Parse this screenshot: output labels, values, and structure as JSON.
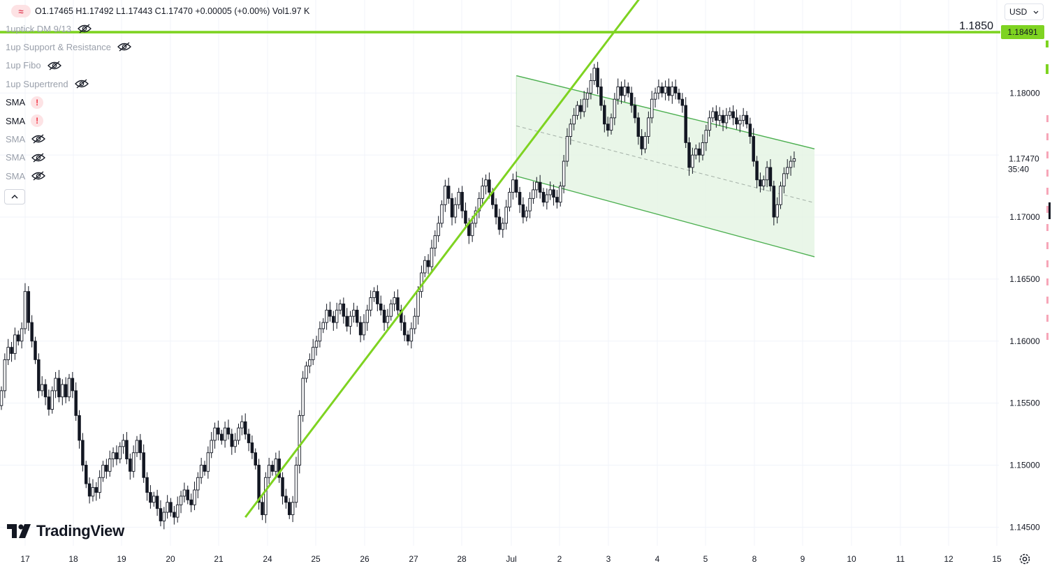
{
  "header": {
    "ohlc": "O1.17465  H1.17492  L1.17443  C1.17470  +0.00005 (+0.00%)  Vol1.97 K",
    "currency": "USD"
  },
  "indicators": [
    {
      "label": "1uptick DM 9/13",
      "status": "hidden"
    },
    {
      "label": "1up Support & Resistance",
      "status": "hidden"
    },
    {
      "label": "1up Fibo",
      "status": "hidden"
    },
    {
      "label": "1up Supertrend",
      "status": "hidden"
    },
    {
      "label": "SMA",
      "status": "error"
    },
    {
      "label": "SMA",
      "status": "error"
    },
    {
      "label": "SMA",
      "status": "hidden"
    },
    {
      "label": "SMA",
      "status": "hidden"
    },
    {
      "label": "SMA",
      "status": "hidden"
    }
  ],
  "icons": {
    "logo": "fx-logo-icon",
    "eye": "eye-off-icon",
    "error": "warning-icon",
    "collapse": "chevron-up-icon",
    "dropdown": "chevron-down-icon",
    "settings": "gear-icon",
    "brand": "tradingview-logo"
  },
  "brand": "TradingView",
  "colors": {
    "up": "#131722",
    "down": "#131722",
    "drawing": "#7ed321",
    "channel_line": "#4caf50",
    "channel_fill": "#e4f4e2",
    "price_label_bg": "#7ed321"
  },
  "chart_data": {
    "type": "candlestick",
    "symbol_timeframe": "EURUSD 1h (approx)",
    "price_axis": {
      "ticks": [
        "1.18000",
        "1.17500",
        "1.17000",
        "1.16500",
        "1.16000",
        "1.15500",
        "1.15000",
        "1.14500"
      ],
      "range": [
        1.1435,
        1.1875
      ]
    },
    "time_axis": {
      "ticks": [
        "17",
        "18",
        "19",
        "20",
        "21",
        "24",
        "25",
        "26",
        "27",
        "28",
        "Jul",
        "2",
        "3",
        "4",
        "5",
        "8",
        "9",
        "10",
        "11",
        "12",
        "15"
      ]
    },
    "last_price": "1.17470",
    "countdown": "35:40",
    "horizontal_line": {
      "text_label": "1.1850",
      "axis_label": "1.18491",
      "price": 1.18491
    },
    "candles": [
      [
        1.1548,
        1.156
      ],
      [
        1.156,
        1.1585
      ],
      [
        1.1585,
        1.1595
      ],
      [
        1.1595,
        1.159
      ],
      [
        1.159,
        1.1605
      ],
      [
        1.1605,
        1.16
      ],
      [
        1.16,
        1.161
      ],
      [
        1.161,
        1.164
      ],
      [
        1.164,
        1.1615
      ],
      [
        1.1615,
        1.16
      ],
      [
        1.16,
        1.1585
      ],
      [
        1.1585,
        1.156
      ],
      [
        1.156,
        1.1565
      ],
      [
        1.1565,
        1.1555
      ],
      [
        1.1555,
        1.1545
      ],
      [
        1.1545,
        1.156
      ],
      [
        1.156,
        1.157
      ],
      [
        1.157,
        1.1555
      ],
      [
        1.1555,
        1.1565
      ],
      [
        1.1565,
        1.1555
      ],
      [
        1.1555,
        1.157
      ],
      [
        1.157,
        1.156
      ],
      [
        1.156,
        1.154
      ],
      [
        1.154,
        1.152
      ],
      [
        1.152,
        1.15
      ],
      [
        1.15,
        1.1485
      ],
      [
        1.1485,
        1.1475
      ],
      [
        1.1475,
        1.1482
      ],
      [
        1.1482,
        1.1478
      ],
      [
        1.1478,
        1.149
      ],
      [
        1.149,
        1.15
      ],
      [
        1.15,
        1.1495
      ],
      [
        1.1495,
        1.1505
      ],
      [
        1.1505,
        1.151
      ],
      [
        1.151,
        1.1505
      ],
      [
        1.1505,
        1.1515
      ],
      [
        1.1515,
        1.152
      ],
      [
        1.152,
        1.1505
      ],
      [
        1.1505,
        1.1495
      ],
      [
        1.1495,
        1.151
      ],
      [
        1.151,
        1.152
      ],
      [
        1.152,
        1.151
      ],
      [
        1.151,
        1.149
      ],
      [
        1.149,
        1.1478
      ],
      [
        1.1478,
        1.147
      ],
      [
        1.147,
        1.1475
      ],
      [
        1.1475,
        1.1465
      ],
      [
        1.1465,
        1.1455
      ],
      [
        1.1455,
        1.1462
      ],
      [
        1.1462,
        1.147
      ],
      [
        1.147,
        1.1462
      ],
      [
        1.1462,
        1.1458
      ],
      [
        1.1458,
        1.1468
      ],
      [
        1.1468,
        1.1475
      ],
      [
        1.1475,
        1.148
      ],
      [
        1.148,
        1.1472
      ],
      [
        1.1472,
        1.1468
      ],
      [
        1.1468,
        1.148
      ],
      [
        1.148,
        1.149
      ],
      [
        1.149,
        1.15
      ],
      [
        1.15,
        1.1495
      ],
      [
        1.1495,
        1.151
      ],
      [
        1.151,
        1.152
      ],
      [
        1.152,
        1.153
      ],
      [
        1.153,
        1.1525
      ],
      [
        1.1525,
        1.152
      ],
      [
        1.152,
        1.153
      ],
      [
        1.153,
        1.1525
      ],
      [
        1.1525,
        1.1515
      ],
      [
        1.1515,
        1.152
      ],
      [
        1.152,
        1.153
      ],
      [
        1.153,
        1.1535
      ],
      [
        1.1535,
        1.1525
      ],
      [
        1.1525,
        1.1518
      ],
      [
        1.1518,
        1.151
      ],
      [
        1.151,
        1.15
      ],
      [
        1.15,
        1.147
      ],
      [
        1.147,
        1.146
      ],
      [
        1.146,
        1.149
      ],
      [
        1.149,
        1.15
      ],
      [
        1.15,
        1.1495
      ],
      [
        1.1495,
        1.1505
      ],
      [
        1.1505,
        1.149
      ],
      [
        1.149,
        1.1475
      ],
      [
        1.1475,
        1.147
      ],
      [
        1.147,
        1.146
      ],
      [
        1.146,
        1.147
      ],
      [
        1.147,
        1.15
      ],
      [
        1.15,
        1.154
      ],
      [
        1.154,
        1.157
      ],
      [
        1.157,
        1.158
      ],
      [
        1.158,
        1.1585
      ],
      [
        1.1585,
        1.1595
      ],
      [
        1.1595,
        1.16
      ],
      [
        1.16,
        1.161
      ],
      [
        1.161,
        1.1615
      ],
      [
        1.1615,
        1.1625
      ],
      [
        1.1625,
        1.162
      ],
      [
        1.162,
        1.1615
      ],
      [
        1.1615,
        1.1625
      ],
      [
        1.1625,
        1.163
      ],
      [
        1.163,
        1.162
      ],
      [
        1.162,
        1.1612
      ],
      [
        1.1612,
        1.162
      ],
      [
        1.162,
        1.1625
      ],
      [
        1.1625,
        1.1615
      ],
      [
        1.1615,
        1.1605
      ],
      [
        1.1605,
        1.1615
      ],
      [
        1.1615,
        1.1625
      ],
      [
        1.1625,
        1.1635
      ],
      [
        1.1635,
        1.164
      ],
      [
        1.164,
        1.163
      ],
      [
        1.163,
        1.1625
      ],
      [
        1.1625,
        1.1615
      ],
      [
        1.1615,
        1.162
      ],
      [
        1.162,
        1.163
      ],
      [
        1.163,
        1.1635
      ],
      [
        1.1635,
        1.1625
      ],
      [
        1.1625,
        1.1615
      ],
      [
        1.1615,
        1.1605
      ],
      [
        1.1605,
        1.16
      ],
      [
        1.16,
        1.161
      ],
      [
        1.161,
        1.162
      ],
      [
        1.162,
        1.164
      ],
      [
        1.164,
        1.1655
      ],
      [
        1.1655,
        1.1665
      ],
      [
        1.1665,
        1.166
      ],
      [
        1.166,
        1.1675
      ],
      [
        1.1675,
        1.1685
      ],
      [
        1.1685,
        1.1695
      ],
      [
        1.1695,
        1.171
      ],
      [
        1.171,
        1.1725
      ],
      [
        1.1725,
        1.1715
      ],
      [
        1.1715,
        1.17
      ],
      [
        1.17,
        1.171
      ],
      [
        1.171,
        1.172
      ],
      [
        1.172,
        1.1705
      ],
      [
        1.1705,
        1.1695
      ],
      [
        1.1695,
        1.1685
      ],
      [
        1.1685,
        1.1695
      ],
      [
        1.1695,
        1.1705
      ],
      [
        1.1705,
        1.1715
      ],
      [
        1.1715,
        1.1725
      ],
      [
        1.1725,
        1.173
      ],
      [
        1.173,
        1.172
      ],
      [
        1.172,
        1.171
      ],
      [
        1.171,
        1.17
      ],
      [
        1.17,
        1.169
      ],
      [
        1.169,
        1.1695
      ],
      [
        1.1695,
        1.1708
      ],
      [
        1.1708,
        1.172
      ],
      [
        1.172,
        1.173
      ],
      [
        1.173,
        1.172
      ],
      [
        1.172,
        1.171
      ],
      [
        1.171,
        1.17
      ],
      [
        1.17,
        1.1705
      ],
      [
        1.1705,
        1.1715
      ],
      [
        1.1715,
        1.1722
      ],
      [
        1.1722,
        1.1728
      ],
      [
        1.1728,
        1.172
      ],
      [
        1.172,
        1.1712
      ],
      [
        1.1712,
        1.1718
      ],
      [
        1.1718,
        1.1722
      ],
      [
        1.1722,
        1.1716
      ],
      [
        1.1716,
        1.1712
      ],
      [
        1.1712,
        1.1725
      ],
      [
        1.1725,
        1.1745
      ],
      [
        1.1745,
        1.1765
      ],
      [
        1.1765,
        1.1775
      ],
      [
        1.1775,
        1.1782
      ],
      [
        1.1782,
        1.179
      ],
      [
        1.179,
        1.1785
      ],
      [
        1.1785,
        1.1795
      ],
      [
        1.1795,
        1.18
      ],
      [
        1.18,
        1.181
      ],
      [
        1.181,
        1.182
      ],
      [
        1.182,
        1.1805
      ],
      [
        1.1805,
        1.179
      ],
      [
        1.179,
        1.1775
      ],
      [
        1.1775,
        1.177
      ],
      [
        1.177,
        1.178
      ],
      [
        1.178,
        1.1795
      ],
      [
        1.1795,
        1.1805
      ],
      [
        1.1805,
        1.1798
      ],
      [
        1.1798,
        1.1805
      ],
      [
        1.1805,
        1.18
      ],
      [
        1.18,
        1.179
      ],
      [
        1.179,
        1.178
      ],
      [
        1.178,
        1.1765
      ],
      [
        1.1765,
        1.1755
      ],
      [
        1.1755,
        1.1765
      ],
      [
        1.1765,
        1.178
      ],
      [
        1.178,
        1.1795
      ],
      [
        1.1795,
        1.18
      ],
      [
        1.18,
        1.1805
      ],
      [
        1.1805,
        1.18
      ],
      [
        1.18,
        1.1805
      ],
      [
        1.1805,
        1.1798
      ],
      [
        1.1798,
        1.1805
      ],
      [
        1.1805,
        1.18
      ],
      [
        1.18,
        1.1795
      ],
      [
        1.1795,
        1.179
      ],
      [
        1.179,
        1.176
      ],
      [
        1.176,
        1.174
      ],
      [
        1.174,
        1.175
      ],
      [
        1.175,
        1.1755
      ],
      [
        1.1755,
        1.175
      ],
      [
        1.175,
        1.176
      ],
      [
        1.176,
        1.177
      ],
      [
        1.177,
        1.178
      ],
      [
        1.178,
        1.1785
      ],
      [
        1.1785,
        1.1778
      ],
      [
        1.1778,
        1.1782
      ],
      [
        1.1782,
        1.1776
      ],
      [
        1.1776,
        1.1782
      ],
      [
        1.1782,
        1.1785
      ],
      [
        1.1785,
        1.178
      ],
      [
        1.178,
        1.1775
      ],
      [
        1.1775,
        1.1778
      ],
      [
        1.1778,
        1.1782
      ],
      [
        1.1782,
        1.1775
      ],
      [
        1.1775,
        1.1765
      ],
      [
        1.1765,
        1.1745
      ],
      [
        1.1745,
        1.173
      ],
      [
        1.173,
        1.1725
      ],
      [
        1.1725,
        1.173
      ],
      [
        1.173,
        1.174
      ],
      [
        1.174,
        1.1725
      ],
      [
        1.1725,
        1.17
      ],
      [
        1.17,
        1.171
      ],
      [
        1.171,
        1.1725
      ],
      [
        1.1725,
        1.1735
      ],
      [
        1.1735,
        1.174
      ],
      [
        1.174,
        1.1745
      ],
      [
        1.1745,
        1.1747
      ]
    ],
    "trendline": {
      "from": {
        "index": 72,
        "price": 1.1458
      },
      "to": {
        "index": 200,
        "price": 1.1918
      }
    },
    "channel": {
      "upper": [
        {
          "index": 152,
          "price": 1.1814
        },
        {
          "index": 240,
          "price": 1.1755
        }
      ],
      "lower": [
        {
          "index": 152,
          "price": 1.1733
        },
        {
          "index": 240,
          "price": 1.1668
        }
      ],
      "end_index": 240
    }
  }
}
